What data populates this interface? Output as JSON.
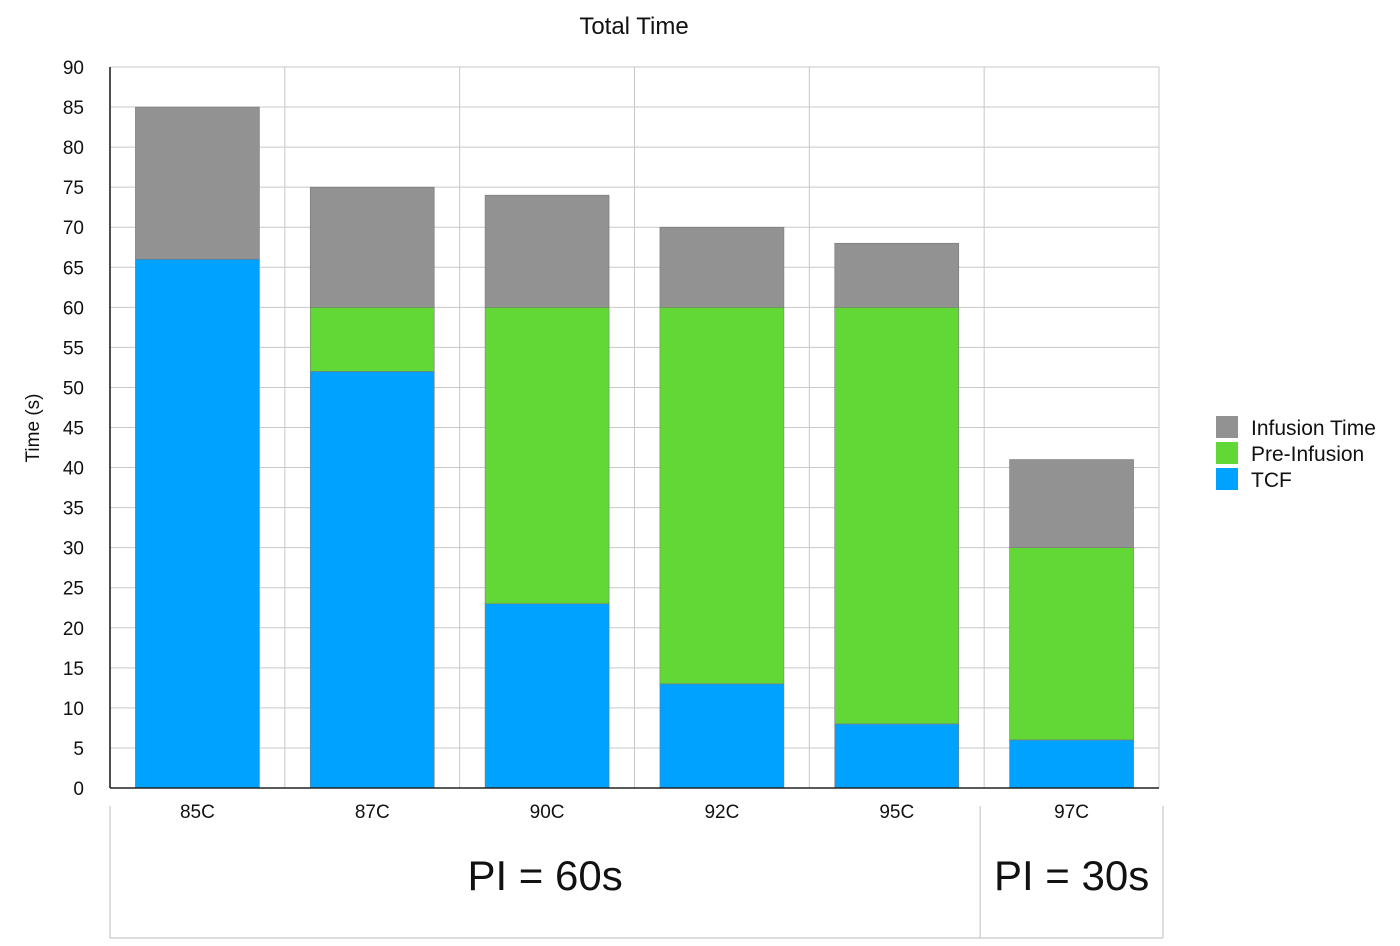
{
  "chart_data": {
    "type": "bar",
    "stacked": true,
    "title": "Total Time",
    "xlabel": "",
    "ylabel": "Time (s)",
    "ylim": [
      0,
      90
    ],
    "ytick_step": 5,
    "grid": true,
    "legend_position": "right",
    "categories": [
      "85C",
      "87C",
      "90C",
      "92C",
      "95C",
      "97C"
    ],
    "series": [
      {
        "name": "TCF",
        "color": "#00a2ff",
        "values": [
          66,
          52,
          23,
          13,
          8,
          6
        ]
      },
      {
        "name": "Pre-Infusion",
        "color": "#61d836",
        "values": [
          0,
          8,
          37,
          47,
          52,
          24
        ]
      },
      {
        "name": "Infusion Time",
        "color": "#929292",
        "values": [
          19,
          15,
          14,
          10,
          8,
          11
        ]
      }
    ],
    "legend_order": [
      "Infusion Time",
      "Pre-Infusion",
      "TCF"
    ],
    "groups": [
      {
        "label": "PI = 60s",
        "categories": [
          "85C",
          "87C",
          "90C",
          "92C",
          "95C"
        ]
      },
      {
        "label": "PI = 30s",
        "categories": [
          "97C"
        ]
      }
    ]
  }
}
